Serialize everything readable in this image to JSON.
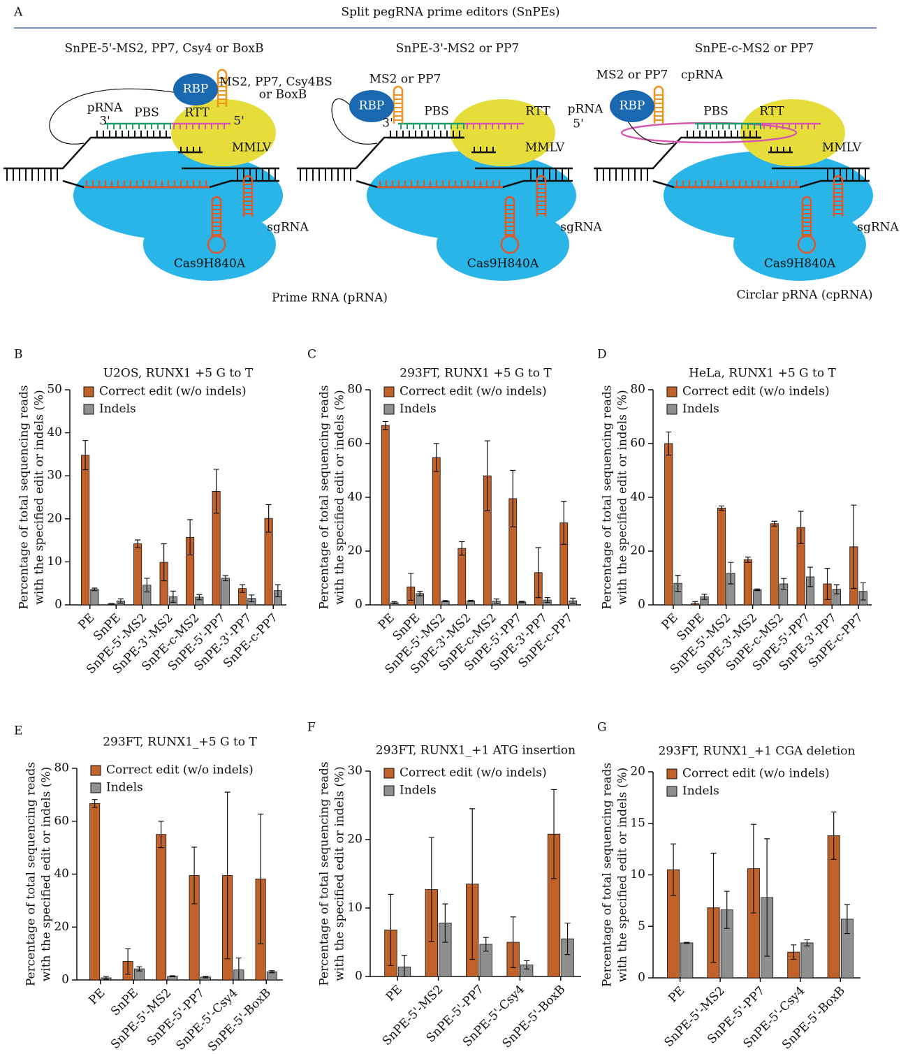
{
  "figure": {
    "panel": "A",
    "title": "Split pegRNA prime editors (SnPEs)",
    "editors": [
      {
        "title": "SnPE-5'-MS2, PP7, Csy4 or BoxB",
        "rbp": "RBP",
        "aptamer": [
          "MS2, PP7, Csy4BS",
          "or BoxB"
        ],
        "prna": "pRNA",
        "pbs": "PBS",
        "rtt": "RTT",
        "end3": "3'",
        "end5": "5'",
        "mmlv": "MMLV",
        "sgrna": "sgRNA",
        "cas9": "Cas9H840A"
      },
      {
        "title": "SnPE-3'-MS2 or PP7",
        "rbp": "RBP",
        "aptamer": [
          "MS2 or PP7"
        ],
        "prna": "pRNA",
        "pbs": "PBS",
        "rtt": "RTT",
        "end3": "3'",
        "end5": "5'",
        "mmlv": "MMLV",
        "sgrna": "sgRNA",
        "cas9": "Cas9H840A"
      },
      {
        "title": "SnPE-c-MS2 or PP7",
        "rbp": "RBP",
        "aptamer": [
          "MS2 or PP7"
        ],
        "prna": "cpRNA",
        "pbs": "PBS",
        "rtt": "RTT",
        "mmlv": "MMLV",
        "sgrna": "sgRNA",
        "cas9": "Cas9H840A"
      }
    ],
    "captions": [
      "Prime RNA (pRNA)",
      "Circlar pRNA (cpRNA)"
    ]
  },
  "chart_data": [
    {
      "type": "bar",
      "panel": "B",
      "title": "U2OS, RUNX1 +5 G to T",
      "ylabel": [
        "Percentage of total sequencing reads",
        "with the specified edit or indels (%)"
      ],
      "categories": [
        "PE",
        "SnPE",
        "SnPE-5'-MS2",
        "SnPE-3'-MS2",
        "SnPE-c-MS2",
        "SnPE-5'-PP7",
        "SnPE-3'-PP7",
        "SnPE-c-PP7"
      ],
      "series": [
        {
          "name": "Correct edit (w/o indels)",
          "color": "#c0622a",
          "values": [
            34.8,
            0.2,
            14.2,
            9.9,
            15.7,
            26.4,
            3.8,
            20.1
          ],
          "errors": [
            3.4,
            0.1,
            0.9,
            4.3,
            4.1,
            5.1,
            0.9,
            3.2
          ]
        },
        {
          "name": "Indels",
          "color": "#8f8f8f",
          "values": [
            3.6,
            0.9,
            4.6,
            1.9,
            1.8,
            6.2,
            1.5,
            3.3
          ],
          "errors": [
            0.3,
            0.5,
            1.6,
            1.3,
            0.6,
            0.6,
            0.8,
            1.4
          ]
        }
      ],
      "ylim": [
        0,
        50
      ],
      "yticks": [
        0,
        10,
        20,
        30,
        40,
        50
      ]
    },
    {
      "type": "bar",
      "panel": "C",
      "title": "293FT, RUNX1 +5 G to T",
      "ylabel": [
        "Percentage of total sequencing reads",
        "with the specified edit or indels (%)"
      ],
      "categories": [
        "PE",
        "SnPE",
        "SnPE-5'-MS2",
        "SnPE-3'-MS2",
        "SnPE-c-MS2",
        "SnPE-5'-PP7",
        "SnPE-3'-PP7",
        "SnPE-c-PP7"
      ],
      "series": [
        {
          "name": "Correct edit (w/o indels)",
          "color": "#c0622a",
          "values": [
            66.7,
            6.7,
            54.8,
            21,
            48,
            39.5,
            12,
            30.5
          ],
          "errors": [
            1.5,
            5,
            5.2,
            2.5,
            13,
            10.5,
            9.3,
            8
          ]
        },
        {
          "name": "Indels",
          "color": "#8f8f8f",
          "values": [
            0.8,
            4.2,
            1.4,
            1.5,
            1.4,
            1.1,
            1.8,
            1.5
          ],
          "errors": [
            0.4,
            0.8,
            0.2,
            0.2,
            0.8,
            0.3,
            0.9,
            1
          ]
        }
      ],
      "ylim": [
        0,
        80
      ],
      "yticks": [
        0,
        20,
        40,
        60,
        80
      ]
    },
    {
      "type": "bar",
      "panel": "D",
      "title": "HeLa, RUNX1 +5 G to T",
      "ylabel": [
        "Percentage of total sequencing reads",
        "with the specified edit or indels (%)"
      ],
      "categories": [
        "PE",
        "SnPE",
        "SnPE-5'-MS2",
        "SnPE-3'-MS2",
        "SnPE-c-MS2",
        "SnPE-5'-PP7",
        "SnPE-3'-PP7",
        "SnPE-c-PP7"
      ],
      "series": [
        {
          "name": "Correct edit (w/o indels)",
          "color": "#c0622a",
          "values": [
            60,
            0.5,
            36,
            16.8,
            30.2,
            28.8,
            7.8,
            21.6
          ],
          "errors": [
            4.3,
            0.7,
            0.8,
            1,
            0.9,
            6,
            5.8,
            15.5
          ]
        },
        {
          "name": "Indels",
          "color": "#8f8f8f",
          "values": [
            8,
            3,
            11.8,
            5.6,
            7.8,
            10.4,
            5.8,
            5
          ],
          "errors": [
            3,
            1,
            4,
            0.3,
            2,
            3.6,
            1.7,
            3.2
          ]
        }
      ],
      "ylim": [
        0,
        80
      ],
      "yticks": [
        0,
        20,
        40,
        60,
        80
      ]
    },
    {
      "type": "bar",
      "panel": "E",
      "title": "293FT, RUNX1_+5 G to T",
      "ylabel": [
        "Percentage of total sequencing reads",
        "with the specified edit or indels (%)"
      ],
      "categories": [
        "PE",
        "SnPE",
        "SnPE-5'-MS2",
        "SnPE-5'-PP7",
        "SnPE-5'-Csy4",
        "SnPE-5'-BoxB"
      ],
      "series": [
        {
          "name": "Correct edit (w/o indels)",
          "color": "#c0622a",
          "values": [
            66.7,
            7,
            55,
            39.5,
            39.5,
            38.2
          ],
          "errors": [
            1.5,
            4.8,
            5,
            10.7,
            31.5,
            24.5
          ]
        },
        {
          "name": "Indels",
          "color": "#8f8f8f",
          "values": [
            0.8,
            4.2,
            1.4,
            1.1,
            3.8,
            3.1
          ],
          "errors": [
            0.5,
            0.8,
            0.2,
            0.3,
            4.5,
            0.4
          ]
        }
      ],
      "ylim": [
        0,
        80
      ],
      "yticks": [
        0,
        20,
        40,
        60,
        80
      ]
    },
    {
      "type": "bar",
      "panel": "F",
      "title": "293FT, RUNX1_+1 ATG insertion",
      "ylabel": [
        "Percentage of total sequencing reads",
        "with the specified edit or indels (%)"
      ],
      "categories": [
        "PE",
        "SnPE-5'-MS2",
        "SnPE-5'-PP7",
        "SnPE-5'-Csy4",
        "SnPE-5'-BoxB"
      ],
      "series": [
        {
          "name": "Correct edit (w/o indels)",
          "color": "#c0622a",
          "values": [
            6.8,
            12.7,
            13.5,
            5,
            20.8
          ],
          "errors": [
            5.2,
            7.6,
            11,
            3.7,
            6.5
          ]
        },
        {
          "name": "Indels",
          "color": "#8f8f8f",
          "values": [
            1.4,
            7.8,
            4.7,
            1.7,
            5.5
          ],
          "errors": [
            1.7,
            2.8,
            1,
            0.6,
            2.3
          ]
        }
      ],
      "ylim": [
        0,
        30
      ],
      "yticks": [
        0,
        10,
        20,
        30
      ]
    },
    {
      "type": "bar",
      "panel": "G",
      "title": "293FT, RUNX1_+1 CGA deletion",
      "ylabel": [
        "Percentage of total sequencing reads",
        "with the specified edit or indels (%)"
      ],
      "categories": [
        "PE",
        "SnPE-5'-MS2",
        "SnPE-5'-PP7",
        "SnPE-5'-Csy4",
        "SnPE-5'-BoxB"
      ],
      "series": [
        {
          "name": "Correct edit (w/o indels)",
          "color": "#c0622a",
          "values": [
            10.5,
            6.8,
            10.6,
            2.5,
            13.8
          ],
          "errors": [
            2.5,
            5.3,
            4.3,
            0.7,
            2.3
          ]
        },
        {
          "name": "Indels",
          "color": "#8f8f8f",
          "values": [
            3.4,
            6.6,
            7.8,
            3.4,
            5.7
          ],
          "errors": [
            0.05,
            1.8,
            5.7,
            0.3,
            1.4
          ]
        }
      ],
      "ylim": [
        0,
        20
      ],
      "yticks": [
        0,
        5,
        10,
        15,
        20
      ]
    }
  ]
}
